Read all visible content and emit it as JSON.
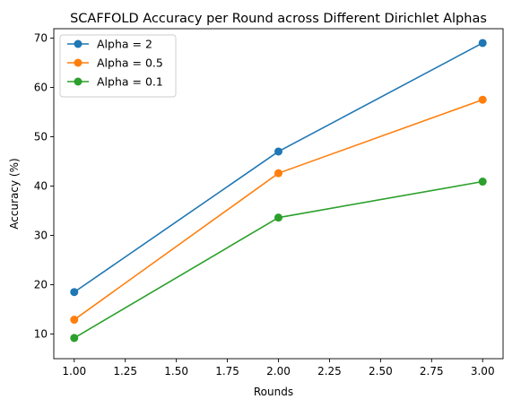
{
  "chart_data": {
    "type": "line",
    "title": "SCAFFOLD Accuracy per Round across Different Dirichlet Alphas",
    "xlabel": "Rounds",
    "ylabel": "Accuracy (%)",
    "x": [
      1,
      2,
      3
    ],
    "xlim": [
      0.9,
      3.1
    ],
    "ylim": [
      5.0,
      71.9
    ],
    "xticks": [
      1.0,
      1.25,
      1.5,
      1.75,
      2.0,
      2.25,
      2.5,
      2.75,
      3.0
    ],
    "xtick_labels": [
      "1.00",
      "1.25",
      "1.50",
      "1.75",
      "2.00",
      "2.25",
      "2.50",
      "2.75",
      "3.00"
    ],
    "yticks": [
      10,
      20,
      30,
      40,
      50,
      60,
      70
    ],
    "ytick_labels": [
      "10",
      "20",
      "30",
      "40",
      "50",
      "60",
      "70"
    ],
    "grid": false,
    "legend_position": "top-left",
    "series": [
      {
        "name": "Alpha = 2",
        "color": "#1f77b4",
        "values": [
          18.5,
          47.0,
          69.0
        ]
      },
      {
        "name": "Alpha = 0.5",
        "color": "#ff7f0e",
        "values": [
          12.9,
          42.6,
          57.5
        ]
      },
      {
        "name": "Alpha = 0.1",
        "color": "#2ca02c",
        "values": [
          9.2,
          33.6,
          40.9
        ]
      }
    ]
  }
}
